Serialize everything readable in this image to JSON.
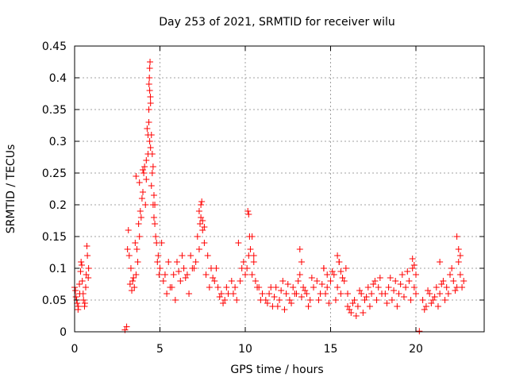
{
  "chart_data": {
    "type": "scatter",
    "title": "Day 253 of 2021, SRMTID for receiver wilu",
    "xlabel": "GPS time / hours",
    "ylabel": "SRMTID / TECUs",
    "xlim": [
      0,
      24
    ],
    "ylim": [
      0,
      0.45
    ],
    "xticks": [
      0,
      5,
      10,
      15,
      20
    ],
    "xtick_labels": [
      "0",
      "5",
      "10",
      "15",
      "20"
    ],
    "yticks": [
      0,
      0.05,
      0.1,
      0.15,
      0.2,
      0.25,
      0.3,
      0.35,
      0.4,
      0.45
    ],
    "ytick_labels": [
      "0",
      "0.05",
      "0.1",
      "0.15",
      "0.2",
      "0.25",
      "0.3",
      "0.35",
      "0.4",
      "0.45"
    ],
    "grid": true,
    "marker": "+",
    "color": "#ff0000",
    "series": [
      {
        "name": "SRMTID",
        "x": [
          0.0,
          0.08,
          0.15,
          0.22,
          0.3,
          0.38,
          0.45,
          0.52,
          0.6,
          0.68,
          0.75,
          0.82,
          0.05,
          0.12,
          0.2,
          0.28,
          0.35,
          0.42,
          0.5,
          0.58,
          0.65,
          0.72,
          0.8,
          2.95,
          3.05,
          3.1,
          3.2,
          3.3,
          3.4,
          3.5,
          3.6,
          3.7,
          3.8,
          3.9,
          4.0,
          4.1,
          4.2,
          4.3,
          4.4,
          4.5,
          4.6,
          4.7,
          4.8,
          4.9,
          3.15,
          3.25,
          3.35,
          3.45,
          3.55,
          3.65,
          3.75,
          3.85,
          3.95,
          4.05,
          4.15,
          4.25,
          4.35,
          4.45,
          4.55,
          4.65,
          4.75,
          4.85,
          4.95,
          3.6,
          3.8,
          4.0,
          4.2,
          4.3,
          4.35,
          4.4,
          4.45,
          4.5,
          4.55,
          4.6,
          4.65,
          4.7,
          4.38,
          4.42,
          4.4,
          4.36,
          4.44,
          5.0,
          5.2,
          5.4,
          5.6,
          5.8,
          6.0,
          6.2,
          6.4,
          6.6,
          6.8,
          7.0,
          7.2,
          7.4,
          7.6,
          7.8,
          8.0,
          8.2,
          8.4,
          8.6,
          8.8,
          9.0,
          5.1,
          5.3,
          5.5,
          5.7,
          5.9,
          6.1,
          6.3,
          6.5,
          6.7,
          6.9,
          7.1,
          7.3,
          7.5,
          7.7,
          7.9,
          8.1,
          8.3,
          8.5,
          8.7,
          8.9,
          7.3,
          7.4,
          7.5,
          7.6,
          7.45,
          7.35,
          9.2,
          9.4,
          9.6,
          9.8,
          10.0,
          10.2,
          10.4,
          10.6,
          10.8,
          11.0,
          9.3,
          9.5,
          9.7,
          9.9,
          10.1,
          10.3,
          10.5,
          10.7,
          10.9,
          10.15,
          10.2,
          10.25,
          10.4,
          10.5,
          11.2,
          11.4,
          11.6,
          11.8,
          12.0,
          12.2,
          12.4,
          12.6,
          12.8,
          13.0,
          13.2,
          13.4,
          13.6,
          13.8,
          14.0,
          11.3,
          11.5,
          11.7,
          11.9,
          12.1,
          12.3,
          12.5,
          12.7,
          12.9,
          13.1,
          13.3,
          13.5,
          13.7,
          13.9,
          13.2,
          13.3,
          14.6,
          14.8,
          14.2,
          14.4,
          14.6,
          14.8,
          15.0,
          15.2,
          15.4,
          15.6,
          15.8,
          16.0,
          14.3,
          14.5,
          14.7,
          14.9,
          15.1,
          15.3,
          15.5,
          15.7,
          15.9,
          15.4,
          15.5,
          15.6,
          16.0,
          16.2,
          16.4,
          16.6,
          16.8,
          17.0,
          17.2,
          17.4,
          17.6,
          17.8,
          18.0,
          16.1,
          16.3,
          16.5,
          16.7,
          16.9,
          17.1,
          17.3,
          17.5,
          17.7,
          17.9,
          18.2,
          18.4,
          18.6,
          18.8,
          19.0,
          19.2,
          19.4,
          19.6,
          19.8,
          20.0,
          18.3,
          18.5,
          18.7,
          18.9,
          19.1,
          19.3,
          19.5,
          19.7,
          19.9,
          19.8,
          19.9,
          20.0,
          20.2,
          20.4,
          20.6,
          20.8,
          21.0,
          21.2,
          21.4,
          21.6,
          21.8,
          22.0,
          22.2,
          22.4,
          22.6,
          22.8,
          20.5,
          20.7,
          20.9,
          21.1,
          21.3,
          21.5,
          21.7,
          21.9,
          22.1,
          22.3,
          22.5,
          22.7,
          21.4,
          22.4,
          22.5,
          22.6
        ],
        "y": [
          0.07,
          0.055,
          0.045,
          0.04,
          0.06,
          0.11,
          0.08,
          0.05,
          0.045,
          0.09,
          0.12,
          0.1,
          0.065,
          0.05,
          0.035,
          0.075,
          0.095,
          0.105,
          0.06,
          0.04,
          0.07,
          0.135,
          0.085,
          0.003,
          0.008,
          0.13,
          0.12,
          0.1,
          0.08,
          0.07,
          0.09,
          0.11,
          0.15,
          0.18,
          0.22,
          0.26,
          0.24,
          0.28,
          0.3,
          0.23,
          0.2,
          0.17,
          0.14,
          0.12,
          0.16,
          0.075,
          0.065,
          0.085,
          0.14,
          0.13,
          0.17,
          0.19,
          0.21,
          0.25,
          0.2,
          0.32,
          0.33,
          0.29,
          0.25,
          0.18,
          0.15,
          0.11,
          0.09,
          0.245,
          0.235,
          0.255,
          0.27,
          0.31,
          0.35,
          0.38,
          0.36,
          0.31,
          0.28,
          0.26,
          0.215,
          0.2,
          0.4,
          0.425,
          0.415,
          0.39,
          0.37,
          0.1,
          0.08,
          0.06,
          0.07,
          0.09,
          0.11,
          0.08,
          0.1,
          0.09,
          0.12,
          0.1,
          0.15,
          0.18,
          0.14,
          0.12,
          0.1,
          0.08,
          0.07,
          0.06,
          0.05,
          0.06,
          0.14,
          0.09,
          0.11,
          0.07,
          0.05,
          0.095,
          0.12,
          0.085,
          0.06,
          0.1,
          0.11,
          0.13,
          0.16,
          0.09,
          0.07,
          0.085,
          0.1,
          0.055,
          0.045,
          0.07,
          0.19,
          0.2,
          0.175,
          0.165,
          0.205,
          0.17,
          0.08,
          0.07,
          0.14,
          0.1,
          0.09,
          0.12,
          0.09,
          0.08,
          0.07,
          0.06,
          0.06,
          0.05,
          0.08,
          0.11,
          0.1,
          0.13,
          0.11,
          0.07,
          0.05,
          0.19,
          0.185,
          0.15,
          0.15,
          0.12,
          0.05,
          0.06,
          0.04,
          0.07,
          0.05,
          0.08,
          0.06,
          0.05,
          0.07,
          0.06,
          0.09,
          0.07,
          0.06,
          0.05,
          0.07,
          0.045,
          0.07,
          0.055,
          0.04,
          0.065,
          0.035,
          0.075,
          0.045,
          0.06,
          0.08,
          0.055,
          0.065,
          0.04,
          0.085,
          0.13,
          0.11,
          0.1,
          0.09,
          0.08,
          0.06,
          0.1,
          0.07,
          0.08,
          0.09,
          0.07,
          0.06,
          0.08,
          0.06,
          0.05,
          0.075,
          0.06,
          0.045,
          0.095,
          0.05,
          0.11,
          0.085,
          0.1,
          0.12,
          0.11,
          0.095,
          0.04,
          0.03,
          0.05,
          0.04,
          0.06,
          0.05,
          0.07,
          0.06,
          0.08,
          0.07,
          0.06,
          0.035,
          0.045,
          0.025,
          0.065,
          0.03,
          0.055,
          0.04,
          0.075,
          0.05,
          0.085,
          0.06,
          0.07,
          0.05,
          0.08,
          0.06,
          0.09,
          0.07,
          0.08,
          0.1,
          0.06,
          0.045,
          0.085,
          0.065,
          0.04,
          0.075,
          0.055,
          0.095,
          0.05,
          0.07,
          0.115,
          0.105,
          0.09,
          0.001,
          0.05,
          0.04,
          0.06,
          0.05,
          0.07,
          0.06,
          0.08,
          0.07,
          0.09,
          0.08,
          0.07,
          0.09,
          0.08,
          0.035,
          0.065,
          0.045,
          0.055,
          0.04,
          0.075,
          0.05,
          0.06,
          0.1,
          0.065,
          0.11,
          0.07,
          0.11,
          0.15,
          0.13,
          0.12
        ]
      }
    ]
  }
}
